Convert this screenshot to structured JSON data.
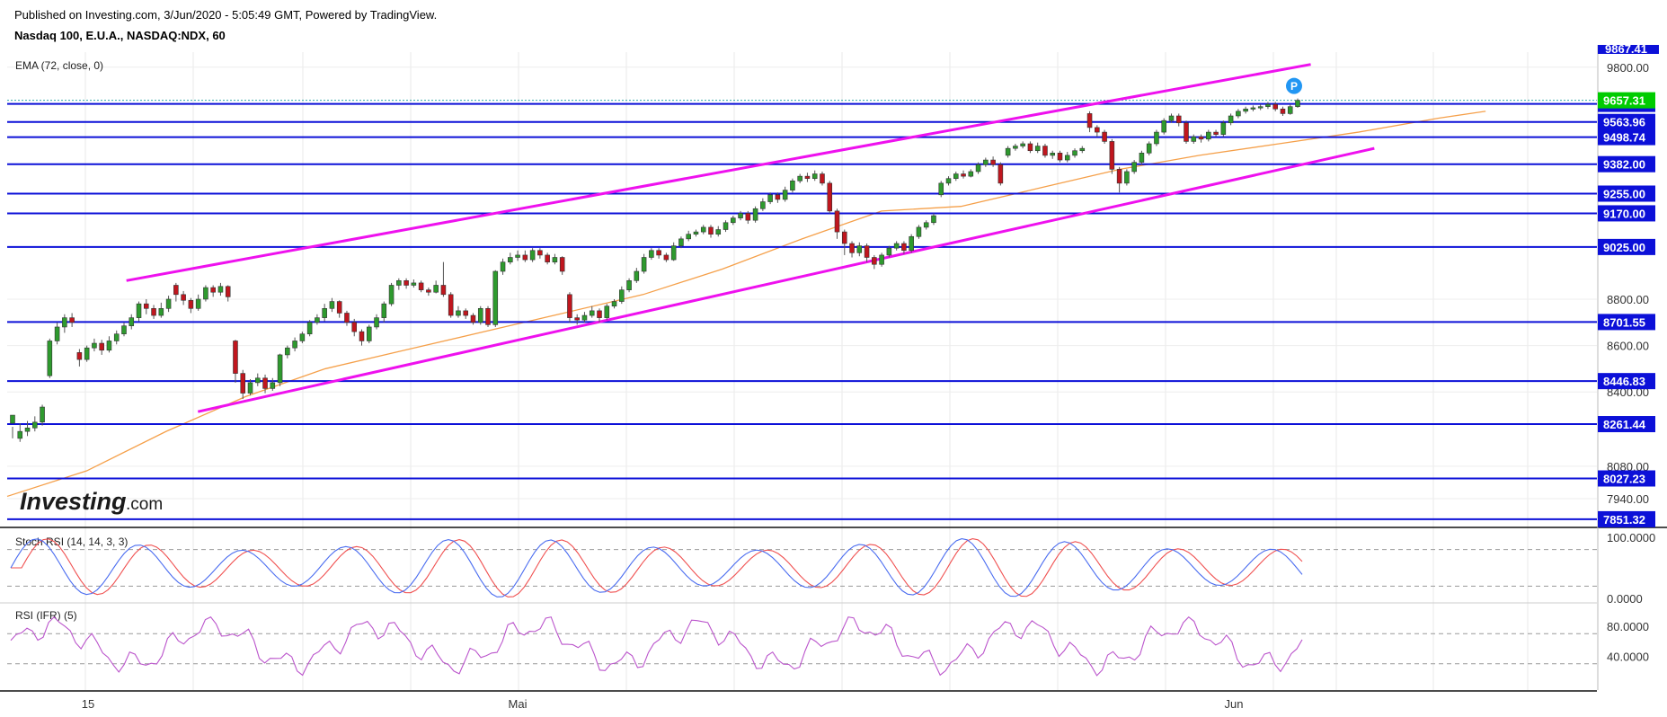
{
  "header": {
    "published": "Published on Investing.com, 3/Jun/2020 - 5:05:49 GMT, Powered by TradingView.",
    "symbol": "Nasdaq 100, E.U.A., NASDAQ:NDX, 60"
  },
  "indicators": {
    "ema_label": "EMA (72, close, 0)",
    "stoch_label": "Stoch RSI (14, 14, 3, 3)",
    "rsi_label": "RSI (IFR) (5)"
  },
  "logo": {
    "brand": "Investing",
    "suffix": ".com"
  },
  "marker": {
    "label": "P",
    "color": "#2196f3"
  },
  "colors": {
    "up": "#2e9a2e",
    "down": "#c0161e",
    "ema": "#f5a04a",
    "level": "#0c10d8",
    "channel": "#ee11ee",
    "current": "#00cc00",
    "stoch_k": "#4a6cf0",
    "stoch_d": "#f05050",
    "rsi": "#bb55cc"
  },
  "chart_data": {
    "type": "candlestick",
    "title": "Nasdaq 100, E.U.A., NASDAQ:NDX, 60",
    "price_axis": {
      "range": [
        7820,
        9865
      ],
      "ticks": [
        9800,
        8800,
        8600,
        8400,
        8080,
        7940
      ],
      "top_partial": "9867.41"
    },
    "time_axis": {
      "labels": [
        "15",
        "Mai",
        "Jun"
      ]
    },
    "current_price": "9657.31",
    "horizontal_levels": [
      "9641.88",
      "9563.96",
      "9498.74",
      "9382.00",
      "9255.00",
      "9170.00",
      "9025.00",
      "8701.55",
      "8446.83",
      "8261.44",
      "8027.23",
      "7851.32"
    ],
    "channel": {
      "upper": {
        "from": [
          0.075,
          8880
        ],
        "to": [
          0.82,
          9812
        ]
      },
      "lower": {
        "from": [
          0.12,
          8315
        ],
        "to": [
          0.86,
          9450
        ]
      }
    },
    "candles": [
      [
        8265,
        8300,
        8250,
        8200
      ],
      [
        8200,
        8230,
        8265,
        8185
      ],
      [
        8230,
        8245,
        8275,
        8210
      ],
      [
        8245,
        8270,
        8295,
        8230
      ],
      [
        8270,
        8335,
        8345,
        8255
      ],
      [
        8470,
        8620,
        8630,
        8460
      ],
      [
        8620,
        8680,
        8700,
        8605
      ],
      [
        8680,
        8720,
        8735,
        8655
      ],
      [
        8720,
        8700,
        8740,
        8680
      ],
      [
        8570,
        8540,
        8585,
        8510
      ],
      [
        8540,
        8590,
        8600,
        8530
      ],
      [
        8590,
        8610,
        8630,
        8575
      ],
      [
        8610,
        8580,
        8625,
        8560
      ],
      [
        8580,
        8620,
        8640,
        8570
      ],
      [
        8620,
        8650,
        8665,
        8605
      ],
      [
        8650,
        8685,
        8700,
        8640
      ],
      [
        8685,
        8720,
        8735,
        8670
      ],
      [
        8720,
        8780,
        8790,
        8705
      ],
      [
        8780,
        8760,
        8800,
        8735
      ],
      [
        8760,
        8730,
        8775,
        8715
      ],
      [
        8730,
        8760,
        8785,
        8720
      ],
      [
        8760,
        8800,
        8815,
        8745
      ],
      [
        8860,
        8820,
        8870,
        8790
      ],
      [
        8820,
        8795,
        8835,
        8775
      ],
      [
        8795,
        8760,
        8805,
        8740
      ],
      [
        8760,
        8800,
        8820,
        8750
      ],
      [
        8800,
        8850,
        8860,
        8790
      ],
      [
        8850,
        8830,
        8860,
        8810
      ],
      [
        8830,
        8855,
        8870,
        8815
      ],
      [
        8855,
        8810,
        8860,
        8790
      ],
      [
        8620,
        8480,
        8625,
        8440
      ],
      [
        8480,
        8395,
        8495,
        8370
      ],
      [
        8395,
        8440,
        8455,
        8385
      ],
      [
        8440,
        8460,
        8480,
        8425
      ],
      [
        8460,
        8415,
        8475,
        8395
      ],
      [
        8415,
        8440,
        8460,
        8405
      ],
      [
        8440,
        8560,
        8565,
        8425
      ],
      [
        8560,
        8590,
        8600,
        8545
      ],
      [
        8590,
        8620,
        8635,
        8575
      ],
      [
        8620,
        8650,
        8660,
        8610
      ],
      [
        8650,
        8700,
        8710,
        8640
      ],
      [
        8700,
        8720,
        8735,
        8690
      ],
      [
        8720,
        8760,
        8780,
        8705
      ],
      [
        8760,
        8790,
        8805,
        8745
      ],
      [
        8790,
        8740,
        8795,
        8720
      ],
      [
        8740,
        8700,
        8750,
        8685
      ],
      [
        8700,
        8660,
        8715,
        8640
      ],
      [
        8660,
        8620,
        8670,
        8600
      ],
      [
        8620,
        8680,
        8690,
        8610
      ],
      [
        8680,
        8720,
        8735,
        8670
      ],
      [
        8720,
        8780,
        8790,
        8700
      ],
      [
        8780,
        8860,
        8870,
        8770
      ],
      [
        8860,
        8880,
        8890,
        8840
      ],
      [
        8880,
        8860,
        8890,
        8845
      ],
      [
        8860,
        8870,
        8885,
        8850
      ],
      [
        8870,
        8840,
        8880,
        8830
      ],
      [
        8840,
        8830,
        8850,
        8815
      ],
      [
        8830,
        8860,
        8880,
        8825
      ],
      [
        8860,
        8820,
        8960,
        8810
      ],
      [
        8820,
        8730,
        8830,
        8720
      ],
      [
        8730,
        8750,
        8770,
        8720
      ],
      [
        8750,
        8730,
        8760,
        8715
      ],
      [
        8730,
        8700,
        8740,
        8690
      ],
      [
        8700,
        8760,
        8770,
        8690
      ],
      [
        8760,
        8690,
        8770,
        8680
      ],
      [
        8690,
        8920,
        8925,
        8680
      ],
      [
        8920,
        8960,
        8975,
        8905
      ],
      [
        8960,
        8980,
        9000,
        8950
      ],
      [
        8980,
        8990,
        9010,
        8965
      ],
      [
        8990,
        8970,
        9010,
        8960
      ],
      [
        8970,
        9010,
        9020,
        8960
      ],
      [
        9010,
        8990,
        9020,
        8975
      ],
      [
        8990,
        8960,
        9000,
        8950
      ],
      [
        8960,
        8980,
        8995,
        8950
      ],
      [
        8980,
        8920,
        8985,
        8905
      ],
      [
        8820,
        8720,
        8830,
        8700
      ],
      [
        8720,
        8710,
        8735,
        8690
      ],
      [
        8710,
        8730,
        8745,
        8700
      ],
      [
        8730,
        8750,
        8770,
        8720
      ],
      [
        8750,
        8720,
        8760,
        8700
      ],
      [
        8720,
        8770,
        8780,
        8710
      ],
      [
        8770,
        8790,
        8800,
        8760
      ],
      [
        8790,
        8840,
        8855,
        8780
      ],
      [
        8840,
        8880,
        8890,
        8830
      ],
      [
        8880,
        8920,
        8935,
        8870
      ],
      [
        8920,
        8980,
        8995,
        8910
      ],
      [
        8980,
        9010,
        9020,
        8970
      ],
      [
        9010,
        8990,
        9020,
        8975
      ],
      [
        8990,
        8970,
        9000,
        8960
      ],
      [
        8970,
        9030,
        9045,
        8965
      ],
      [
        9030,
        9060,
        9070,
        9020
      ],
      [
        9060,
        9080,
        9095,
        9050
      ],
      [
        9080,
        9090,
        9100,
        9070
      ],
      [
        9090,
        9110,
        9120,
        9080
      ],
      [
        9110,
        9080,
        9120,
        9065
      ],
      [
        9080,
        9100,
        9115,
        9070
      ],
      [
        9100,
        9130,
        9140,
        9090
      ],
      [
        9130,
        9150,
        9160,
        9120
      ],
      [
        9150,
        9170,
        9180,
        9140
      ],
      [
        9170,
        9140,
        9180,
        9125
      ],
      [
        9140,
        9190,
        9200,
        9130
      ],
      [
        9190,
        9220,
        9235,
        9180
      ],
      [
        9220,
        9250,
        9260,
        9210
      ],
      [
        9250,
        9230,
        9260,
        9215
      ],
      [
        9230,
        9270,
        9285,
        9220
      ],
      [
        9270,
        9310,
        9320,
        9260
      ],
      [
        9310,
        9330,
        9340,
        9300
      ],
      [
        9330,
        9320,
        9345,
        9305
      ],
      [
        9320,
        9340,
        9355,
        9310
      ],
      [
        9340,
        9300,
        9350,
        9290
      ],
      [
        9300,
        9180,
        9310,
        9170
      ],
      [
        9180,
        9090,
        9190,
        9060
      ],
      [
        9090,
        9040,
        9100,
        8990
      ],
      [
        9040,
        9000,
        9050,
        8980
      ],
      [
        9000,
        9030,
        9045,
        8985
      ],
      [
        9030,
        8980,
        9040,
        8960
      ],
      [
        8980,
        8950,
        8990,
        8930
      ],
      [
        8950,
        8990,
        9000,
        8940
      ],
      [
        8990,
        9020,
        9030,
        8980
      ],
      [
        9020,
        9040,
        9050,
        9010
      ],
      [
        9040,
        9010,
        9050,
        8995
      ],
      [
        9010,
        9070,
        9080,
        9000
      ],
      [
        9070,
        9110,
        9120,
        9060
      ],
      [
        9110,
        9130,
        9140,
        9100
      ],
      [
        9130,
        9160,
        9170,
        9120
      ],
      [
        9250,
        9300,
        9310,
        9240
      ],
      [
        9300,
        9320,
        9330,
        9290
      ],
      [
        9320,
        9340,
        9350,
        9310
      ],
      [
        9340,
        9330,
        9355,
        9320
      ],
      [
        9330,
        9350,
        9360,
        9325
      ],
      [
        9350,
        9380,
        9390,
        9340
      ],
      [
        9380,
        9400,
        9410,
        9370
      ],
      [
        9400,
        9380,
        9415,
        9370
      ],
      [
        9380,
        9300,
        9390,
        9290
      ],
      [
        9420,
        9450,
        9460,
        9410
      ],
      [
        9450,
        9460,
        9470,
        9440
      ],
      [
        9460,
        9470,
        9480,
        9450
      ],
      [
        9470,
        9440,
        9480,
        9430
      ],
      [
        9440,
        9460,
        9475,
        9430
      ],
      [
        9460,
        9420,
        9470,
        9410
      ],
      [
        9420,
        9430,
        9440,
        9405
      ],
      [
        9430,
        9400,
        9440,
        9390
      ],
      [
        9400,
        9420,
        9435,
        9390
      ],
      [
        9420,
        9440,
        9450,
        9410
      ],
      [
        9440,
        9450,
        9460,
        9430
      ],
      [
        9600,
        9540,
        9610,
        9520
      ],
      [
        9540,
        9520,
        9550,
        9500
      ],
      [
        9520,
        9480,
        9530,
        9470
      ],
      [
        9480,
        9360,
        9490,
        9340
      ],
      [
        9360,
        9300,
        9370,
        9260
      ],
      [
        9300,
        9350,
        9360,
        9290
      ],
      [
        9350,
        9390,
        9400,
        9340
      ],
      [
        9390,
        9430,
        9440,
        9380
      ],
      [
        9430,
        9470,
        9480,
        9420
      ],
      [
        9470,
        9520,
        9530,
        9460
      ],
      [
        9520,
        9570,
        9580,
        9510
      ],
      [
        9570,
        9590,
        9600,
        9560
      ],
      [
        9590,
        9560,
        9600,
        9545
      ],
      [
        9560,
        9480,
        9570,
        9470
      ],
      [
        9480,
        9500,
        9510,
        9470
      ],
      [
        9500,
        9490,
        9510,
        9475
      ],
      [
        9490,
        9520,
        9530,
        9480
      ],
      [
        9520,
        9510,
        9530,
        9500
      ],
      [
        9510,
        9560,
        9570,
        9500
      ],
      [
        9560,
        9590,
        9600,
        9550
      ],
      [
        9590,
        9610,
        9620,
        9580
      ],
      [
        9610,
        9620,
        9630,
        9600
      ],
      [
        9620,
        9625,
        9635,
        9610
      ],
      [
        9625,
        9630,
        9640,
        9615
      ],
      [
        9630,
        9640,
        9650,
        9620
      ],
      [
        9640,
        9620,
        9650,
        9610
      ],
      [
        9620,
        9600,
        9630,
        9590
      ],
      [
        9600,
        9630,
        9640,
        9595
      ],
      [
        9630,
        9657,
        9665,
        9625
      ]
    ],
    "ema": [
      [
        0,
        7950
      ],
      [
        0.05,
        8060
      ],
      [
        0.1,
        8230
      ],
      [
        0.15,
        8380
      ],
      [
        0.2,
        8500
      ],
      [
        0.25,
        8580
      ],
      [
        0.3,
        8660
      ],
      [
        0.35,
        8740
      ],
      [
        0.4,
        8820
      ],
      [
        0.45,
        8930
      ],
      [
        0.5,
        9060
      ],
      [
        0.55,
        9180
      ],
      [
        0.6,
        9200
      ],
      [
        0.65,
        9280
      ],
      [
        0.7,
        9360
      ],
      [
        0.75,
        9420
      ],
      [
        0.8,
        9470
      ],
      [
        0.85,
        9520
      ],
      [
        0.9,
        9580
      ],
      [
        0.93,
        9610
      ]
    ],
    "stoch_rsi": {
      "range": [
        0,
        100
      ],
      "ticks": [
        "100.0000",
        "0.0000"
      ],
      "bands": [
        80,
        20
      ]
    },
    "rsi": {
      "range": [
        0,
        100
      ],
      "ticks": [
        "80.0000",
        "40.0000"
      ],
      "bands": [
        70,
        30
      ]
    }
  }
}
